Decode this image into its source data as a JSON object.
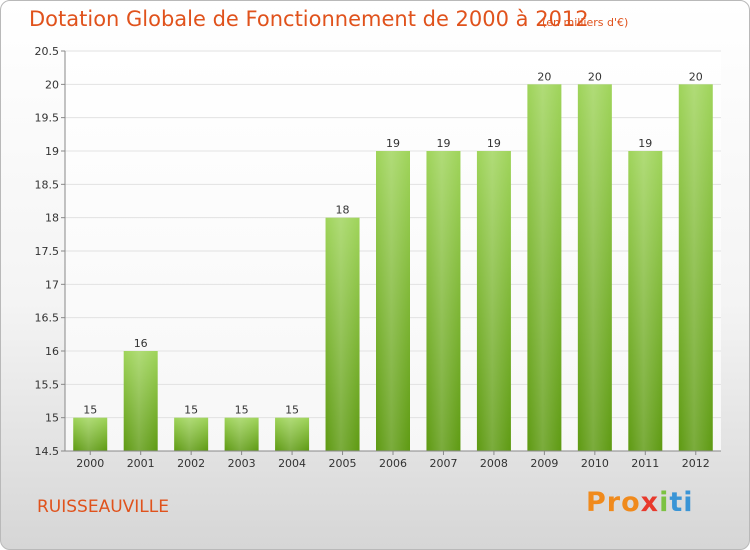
{
  "header": {
    "title": "Dotation Globale de Fonctionnement de 2000 à 2012",
    "subtitle": "(en milliers d'€)"
  },
  "footer": {
    "town": "RUISSEAUVILLE",
    "logo": [
      "Pro",
      "x",
      "i",
      "ti"
    ]
  },
  "colors": {
    "title": "#e0521c",
    "bar_top": "#9fd45a",
    "bar_bottom": "#5e9a12",
    "grid": "#e2e2e2"
  },
  "chart_data": {
    "type": "bar",
    "title": "Dotation Globale de Fonctionnement de 2000 à 2012",
    "subtitle": "(en milliers d'€)",
    "categories": [
      "2000",
      "2001",
      "2002",
      "2003",
      "2004",
      "2005",
      "2006",
      "2007",
      "2008",
      "2009",
      "2010",
      "2011",
      "2012"
    ],
    "values": [
      15,
      16,
      15,
      15,
      15,
      18,
      19,
      19,
      19,
      20,
      20,
      19,
      20
    ],
    "data_labels": [
      "15",
      "16",
      "15",
      "15",
      "15",
      "18",
      "19",
      "19",
      "19",
      "20",
      "20",
      "19",
      "20"
    ],
    "ylim": [
      14.5,
      20.5
    ],
    "yticks": [
      14.5,
      15,
      15.5,
      16,
      16.5,
      17,
      17.5,
      18,
      18.5,
      19,
      19.5,
      20,
      20.5
    ],
    "ytick_labels": [
      "14.5",
      "15",
      "15.5",
      "16",
      "16.5",
      "17",
      "17.5",
      "18",
      "18.5",
      "19",
      "19.5",
      "20",
      "20.5"
    ],
    "grid": true,
    "legend": "none"
  }
}
